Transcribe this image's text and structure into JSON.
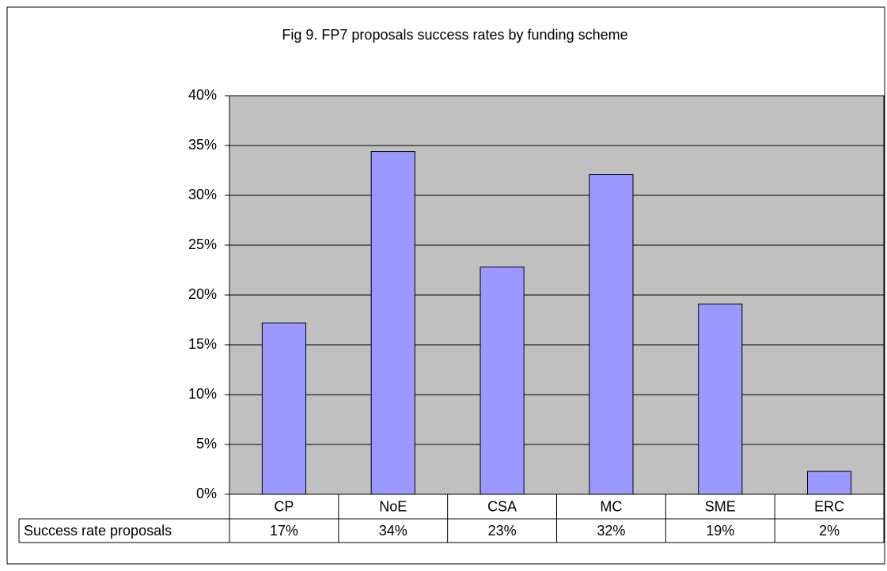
{
  "chart_data": {
    "type": "bar",
    "title": "Fig 9. FP7 proposals success rates by funding scheme",
    "categories": [
      "CP",
      "NoE",
      "CSA",
      "MC",
      "SME",
      "ERC"
    ],
    "series": [
      {
        "name": "Success rate proposals",
        "color": "#9999ff",
        "values": [
          17.2,
          34.4,
          22.8,
          32.1,
          19.1,
          2.3
        ],
        "value_labels": [
          "17%",
          "34%",
          "23%",
          "32%",
          "19%",
          "2%"
        ]
      }
    ],
    "ylim": [
      0,
      40
    ],
    "yticks": [
      {
        "value": 0,
        "label": "0%"
      },
      {
        "value": 5,
        "label": "5%"
      },
      {
        "value": 10,
        "label": "10%"
      },
      {
        "value": 15,
        "label": "15%"
      },
      {
        "value": 20,
        "label": "20%"
      },
      {
        "value": 25,
        "label": "25%"
      },
      {
        "value": 30,
        "label": "30%"
      },
      {
        "value": 35,
        "label": "35%"
      },
      {
        "value": 40,
        "label": "40%"
      }
    ],
    "grid": true,
    "plot_background": "#c0c0c0"
  }
}
